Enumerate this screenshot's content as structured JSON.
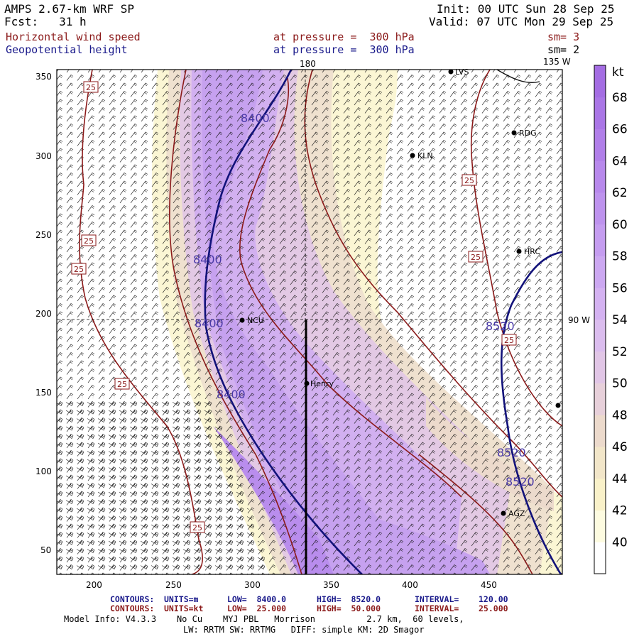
{
  "header": {
    "title": "AMPS 2.67-km WRF SP",
    "fcst": "Fcst:   31 h",
    "init": "Init: 00 UTC Sun 28 Sep 25",
    "valid": "Valid: 07 UTC Mon 29 Sep 25",
    "field1_name": "Horizontal wind speed",
    "field1_level": "at pressure =  300 hPa",
    "field1_sm": "sm= 3",
    "field2_name": "Geopotential height",
    "field2_level": "at pressure =  300 hPa",
    "field2_sm": "sm= 2"
  },
  "map": {
    "x_ticks": [
      "200",
      "250",
      "300",
      "350",
      "400",
      "450"
    ],
    "y_ticks": [
      "350",
      "300",
      "250",
      "200",
      "150",
      "100",
      "50"
    ],
    "meridian_180_label": "180",
    "meridian_135w_label": "135 W",
    "meridian_90w_label": "90 W",
    "stations": [
      {
        "name": "LVS"
      },
      {
        "name": "RDG"
      },
      {
        "name": "KLN"
      },
      {
        "name": "HRC"
      },
      {
        "name": "NCU"
      },
      {
        "name": "Henry"
      },
      {
        "name": "AGZ"
      }
    ],
    "height_contour_labels": [
      "8400",
      "8400",
      "8400",
      "8400",
      "8520",
      "8520",
      "8520"
    ],
    "speed_contour_label": "25"
  },
  "colorbar": {
    "unit": "kt",
    "ticks": [
      "68",
      "66",
      "64",
      "62",
      "60",
      "58",
      "56",
      "54",
      "52",
      "50",
      "48",
      "46",
      "44",
      "42",
      "40"
    ],
    "colors": [
      "#ffffff",
      "#fdfbe0",
      "#f9f1c9",
      "#f2e6c9",
      "#ecdacc",
      "#e7d0da",
      "#e1c6e6",
      "#dbbdee",
      "#d4b2f1",
      "#cca8f1",
      "#c59df0",
      "#be93ee",
      "#b889ec",
      "#b17fe9",
      "#aa76e6",
      "#a46de3"
    ]
  },
  "footer": {
    "contours_label": "CONTOURS:",
    "c1_units": "UNITS=m",
    "c1_low": "LOW=  8400.0",
    "c1_high": "HIGH=  8520.0",
    "c1_interval": "INTERVAL=    120.00",
    "c2_units": "UNITS=kt",
    "c2_low": "LOW=  25.000",
    "c2_high": "HIGH=  50.000",
    "c2_interval": "INTERVAL=    25.000",
    "model_info": "Model Info: V4.3.3    No Cu    MYJ PBL   Morrison          2.7 km,  60 levels,",
    "model_info2": "LW: RRTM SW: RRTMG   DIFF: simple KM: 2D Smagor"
  }
}
